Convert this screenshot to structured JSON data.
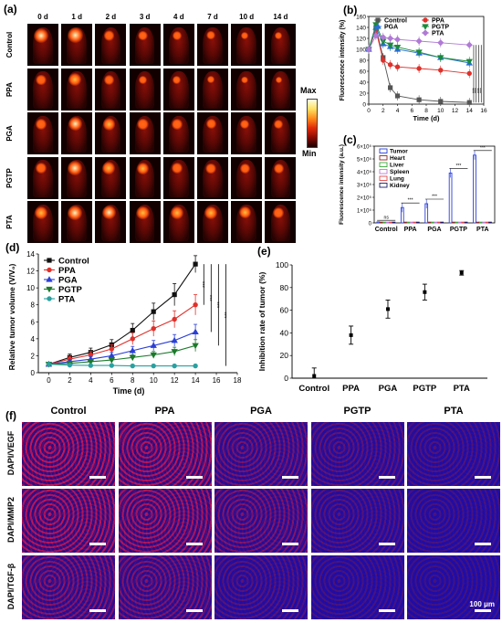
{
  "panel_a": {
    "label": "(a)",
    "days": [
      "0 d",
      "1 d",
      "2 d",
      "3 d",
      "4 d",
      "7 d",
      "10 d",
      "14 d"
    ],
    "groups": [
      "Control",
      "PPA",
      "PGA",
      "PGTP",
      "PTA"
    ],
    "colorbar_max": "Max",
    "colorbar_min": "Min",
    "tumor_intensity": [
      [
        0.95,
        1.0,
        0.55,
        0.45,
        0.45,
        0.35,
        0.3,
        0.25
      ],
      [
        0.55,
        0.75,
        0.45,
        0.35,
        0.3,
        0.25,
        0.2,
        0.2
      ],
      [
        0.55,
        0.85,
        0.7,
        0.6,
        0.55,
        0.5,
        0.45,
        0.4
      ],
      [
        0.6,
        0.9,
        0.75,
        0.65,
        0.6,
        0.55,
        0.5,
        0.45
      ],
      [
        0.75,
        0.95,
        0.85,
        0.8,
        0.75,
        0.7,
        0.65,
        0.6
      ]
    ]
  },
  "panel_b": {
    "label": "(b)",
    "chart_data": {
      "type": "line",
      "xlabel": "Time (d)",
      "ylabel": "Fluorescence intensity (%)",
      "xlim": [
        0,
        16
      ],
      "ylim": [
        0,
        160
      ],
      "xticks": [
        "0",
        "2",
        "4",
        "6",
        "8",
        "10",
        "12",
        "14",
        "16"
      ],
      "yticks": [
        "0",
        "20",
        "40",
        "60",
        "80",
        "100",
        "120",
        "140",
        "160"
      ],
      "x": [
        0,
        1,
        2,
        3,
        4,
        7,
        10,
        14
      ],
      "series": [
        {
          "name": "Control",
          "color": "#555555",
          "marker": "square",
          "values": [
            100,
            140,
            85,
            30,
            15,
            8,
            5,
            3
          ]
        },
        {
          "name": "PPA",
          "color": "#e0302a",
          "marker": "circle",
          "values": [
            100,
            135,
            80,
            72,
            68,
            65,
            62,
            56
          ]
        },
        {
          "name": "PGA",
          "color": "#2a6fd6",
          "marker": "triangle",
          "values": [
            100,
            140,
            110,
            105,
            100,
            93,
            85,
            75
          ]
        },
        {
          "name": "PGTP",
          "color": "#1a8a3a",
          "marker": "triangle-down",
          "values": [
            100,
            145,
            115,
            108,
            104,
            95,
            85,
            78
          ]
        },
        {
          "name": "PTA",
          "color": "#b07ad6",
          "marker": "diamond",
          "values": [
            100,
            125,
            122,
            120,
            118,
            115,
            112,
            108
          ]
        }
      ],
      "significance": "***"
    }
  },
  "panel_c": {
    "label": "(c)",
    "chart_data": {
      "type": "bar",
      "ylabel": "Fluorescence intensity (a.u.)",
      "categories": [
        "Control",
        "PPA",
        "PGA",
        "PGTP",
        "PTA"
      ],
      "yticks": [
        "0",
        "1×10⁵",
        "2×10⁵",
        "3×10⁵",
        "4×10⁵",
        "5×10⁵",
        "6×10⁵"
      ],
      "ylim": [
        0,
        600000
      ],
      "series": [
        {
          "name": "Tumor",
          "color": "#2a3fd6",
          "values": [
            8000,
            120000,
            150000,
            390000,
            530000
          ]
        },
        {
          "name": "Heart",
          "color": "#8b2a2a",
          "values": [
            6000,
            6000,
            6000,
            6000,
            6000
          ]
        },
        {
          "name": "Liver",
          "color": "#3aa83a",
          "values": [
            6000,
            6000,
            6000,
            6000,
            6000
          ]
        },
        {
          "name": "Spleen",
          "color": "#c07ad6",
          "values": [
            6000,
            6000,
            6000,
            6000,
            6000
          ]
        },
        {
          "name": "Lung",
          "color": "#e04a4a",
          "values": [
            6000,
            6000,
            6000,
            6000,
            6000
          ]
        },
        {
          "name": "Kidney",
          "color": "#1a1a6a",
          "values": [
            6000,
            6000,
            6000,
            6000,
            6000
          ]
        }
      ],
      "annotations": [
        "ns",
        "***",
        "***",
        "***",
        "***"
      ]
    }
  },
  "panel_d": {
    "label": "(d)",
    "chart_data": {
      "type": "line",
      "xlabel": "Time (d)",
      "ylabel": "Relative tumor volume (V/V₀)",
      "xlim": [
        -1,
        18
      ],
      "ylim": [
        0,
        14
      ],
      "xticks": [
        "0",
        "2",
        "4",
        "6",
        "8",
        "10",
        "12",
        "14",
        "16",
        "18"
      ],
      "yticks": [
        "0",
        "2",
        "4",
        "6",
        "8",
        "10",
        "12",
        "14"
      ],
      "x": [
        0,
        2,
        4,
        6,
        8,
        10,
        12,
        14
      ],
      "series": [
        {
          "name": "Control",
          "color": "#111111",
          "marker": "square",
          "values": [
            1.0,
            1.8,
            2.4,
            3.3,
            5.0,
            7.2,
            9.2,
            12.8
          ],
          "err": [
            0.1,
            0.4,
            0.5,
            0.6,
            0.8,
            1.0,
            1.3,
            1.0
          ]
        },
        {
          "name": "PPA",
          "color": "#e0302a",
          "marker": "circle",
          "values": [
            1.0,
            1.6,
            2.1,
            2.8,
            4.0,
            5.2,
            6.3,
            8.0
          ],
          "err": [
            0.1,
            0.3,
            0.4,
            0.5,
            0.7,
            0.9,
            1.0,
            1.2
          ]
        },
        {
          "name": "PGA",
          "color": "#2a3fd6",
          "marker": "triangle",
          "values": [
            1.0,
            1.3,
            1.6,
            2.0,
            2.6,
            3.2,
            3.8,
            4.8
          ],
          "err": [
            0.1,
            0.2,
            0.3,
            0.4,
            0.5,
            0.6,
            0.7,
            0.9
          ]
        },
        {
          "name": "PGTP",
          "color": "#1a7a2a",
          "marker": "triangle-down",
          "values": [
            1.0,
            1.1,
            1.3,
            1.5,
            1.8,
            2.1,
            2.5,
            3.2
          ],
          "err": [
            0.1,
            0.2,
            0.2,
            0.3,
            0.3,
            0.4,
            0.5,
            0.7
          ]
        },
        {
          "name": "PTA",
          "color": "#2aa0a0",
          "marker": "circle",
          "values": [
            1.0,
            0.9,
            0.85,
            0.85,
            0.8,
            0.8,
            0.8,
            0.8
          ],
          "err": [
            0.05,
            0.1,
            0.1,
            0.1,
            0.1,
            0.1,
            0.1,
            0.1
          ]
        }
      ],
      "significance": "***"
    }
  },
  "panel_e": {
    "label": "(e)",
    "chart_data": {
      "type": "scatter",
      "ylabel": "Inhibition rate of tumor (%)",
      "categories": [
        "Control",
        "PPA",
        "PGA",
        "PGTP",
        "PTA"
      ],
      "values": [
        2,
        38,
        61,
        76,
        93
      ],
      "err": [
        7,
        8,
        8,
        7,
        2
      ],
      "ylim": [
        0,
        100
      ],
      "yticks": [
        "0",
        "20",
        "40",
        "60",
        "80",
        "100"
      ]
    }
  },
  "panel_f": {
    "label": "(f)",
    "columns": [
      "Control",
      "PPA",
      "PGA",
      "PGTP",
      "PTA"
    ],
    "rows": [
      "DAPI/VEGF",
      "DAPI/MMP2",
      "DAPI/TGF-β"
    ],
    "scale_text": "100 μm",
    "red_intensity": [
      [
        0.9,
        0.85,
        0.5,
        0.35,
        0.25
      ],
      [
        0.85,
        0.8,
        0.55,
        0.3,
        0.2
      ],
      [
        0.6,
        0.55,
        0.3,
        0.2,
        0.15
      ]
    ]
  }
}
